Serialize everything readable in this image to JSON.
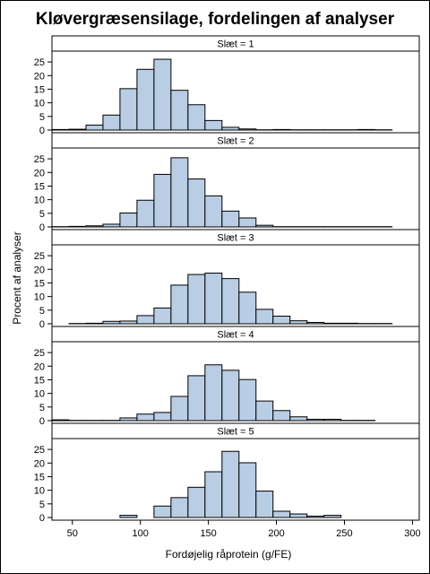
{
  "chart_data": {
    "type": "bar",
    "title": "Kløvergræsensilage, fordelingen af analyser",
    "xlabel": "Fordøjelig råprotein (g/FE)",
    "ylabel": "Procent af analyser",
    "xlim": [
      35,
      305
    ],
    "ylim": [
      0,
      28
    ],
    "x_ticks": [
      50,
      100,
      150,
      200,
      250,
      300
    ],
    "y_ticks": [
      0,
      5,
      10,
      15,
      20,
      25
    ],
    "bin_starts": [
      35,
      47.5,
      60,
      72.5,
      85,
      97.5,
      110,
      122.5,
      135,
      147.5,
      160,
      172.5,
      185,
      197.5,
      210,
      222.5,
      235,
      247.5,
      260,
      272.5,
      285
    ],
    "bin_width": 12.5,
    "panels": [
      {
        "label": "Slæt = 1",
        "values": [
          0.2,
          0.3,
          1.8,
          5.5,
          15.2,
          22.3,
          26.0,
          14.6,
          9.3,
          3.5,
          1.0,
          0.4,
          0.1,
          0.2,
          0.1,
          0.1,
          0.1,
          0.1,
          0.2,
          0.1,
          0
        ]
      },
      {
        "label": "Slæt = 2",
        "values": [
          0.1,
          0.2,
          0.4,
          1.0,
          5.1,
          9.8,
          19.3,
          25.4,
          17.6,
          11.4,
          5.8,
          3.3,
          0.6,
          0.1,
          0.1,
          0.1,
          0.1,
          0.1,
          0.1,
          0.1,
          0
        ]
      },
      {
        "label": "Slæt = 3",
        "values": [
          0,
          0.1,
          0.2,
          0.9,
          1.0,
          3.0,
          5.8,
          14.2,
          18.1,
          18.6,
          16.6,
          11.6,
          5.3,
          2.8,
          1.1,
          0.5,
          0.2,
          0.2,
          0.1,
          0.1,
          0
        ]
      },
      {
        "label": "Slæt = 4",
        "values": [
          0.3,
          0.1,
          0.1,
          0.1,
          1.0,
          2.4,
          3.0,
          8.9,
          16.5,
          20.5,
          18.5,
          15.1,
          7.2,
          3.7,
          1.4,
          0.5,
          0.5,
          0.1,
          0.1,
          0,
          0
        ]
      },
      {
        "label": "Slæt = 5",
        "values": [
          0,
          0,
          0,
          0,
          0.8,
          0,
          4.2,
          7.3,
          11.1,
          16.8,
          24.3,
          20.1,
          9.7,
          2.3,
          1.3,
          0.5,
          0.8,
          0,
          0,
          0,
          0
        ]
      }
    ],
    "bar_fill": "#b9cde5",
    "bar_stroke": "#000000",
    "grid": false,
    "legend": "none"
  }
}
